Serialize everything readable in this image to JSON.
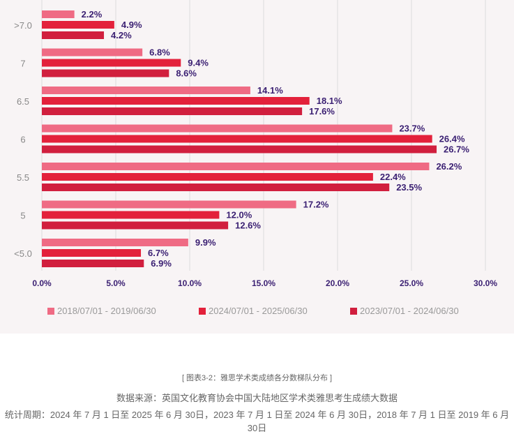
{
  "chart_data": {
    "type": "bar",
    "orientation": "horizontal",
    "categories": [
      ">7.0",
      "7",
      "6.5",
      "6",
      "5.5",
      "5",
      "<5.0"
    ],
    "series": [
      {
        "name": "2018/07/01 - 2019/06/30",
        "color": "#ef6b84",
        "values": [
          2.2,
          6.8,
          14.1,
          23.7,
          26.2,
          17.2,
          9.9
        ]
      },
      {
        "name": "2024/07/01 - 2025/06/30",
        "color": "#e3213b",
        "values": [
          4.9,
          9.4,
          18.1,
          26.4,
          22.4,
          12.0,
          6.7
        ]
      },
      {
        "name": "2023/07/01 - 2024/06/30",
        "color": "#d11f3e",
        "values": [
          4.2,
          8.6,
          17.6,
          26.7,
          23.5,
          12.6,
          6.9
        ]
      }
    ],
    "xlim": [
      0,
      30
    ],
    "xticks": [
      "0.0%",
      "5.0%",
      "10.0%",
      "15.0%",
      "20.0%",
      "25.0%",
      "30.0%"
    ],
    "grid": true,
    "legend": "bottom"
  },
  "caption": {
    "title": "[ 图表3-2：雅思学术类成绩各分数梯队分布 ]",
    "source": "数据来源：英国文化教育协会中国大陆地区学术类雅思考生成绩大数据",
    "period": "统计周期：2024 年 7 月 1 日至 2025 年 6 月 30日，2023 年 7 月 1 日至 2024 年 6 月 30日，2018 年 7 月 1 日至 2019 年 6 月 30日"
  }
}
